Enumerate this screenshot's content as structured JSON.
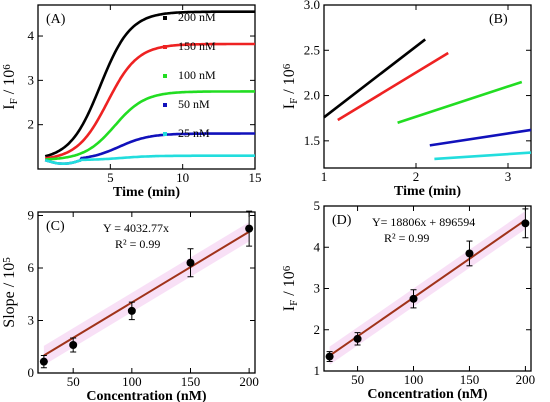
{
  "chart_data": [
    {
      "panel": "(A)",
      "type": "line",
      "xlabel": "Time (min)",
      "ylabel": "I_F / 10^6",
      "xlim": [
        0,
        15
      ],
      "ylim": [
        1.0,
        4.7
      ],
      "xticks": [
        5,
        10,
        15
      ],
      "yticks": [
        2,
        3,
        4
      ],
      "legend_position": "right",
      "series": [
        {
          "name": "200 nM",
          "color": "#000000",
          "start": 1.2,
          "plateau": 4.55,
          "halftime": 4.3
        },
        {
          "name": "150 nM",
          "color": "#ee2222",
          "start": 1.2,
          "plateau": 3.82,
          "halftime": 4.8
        },
        {
          "name": "100 nM",
          "color": "#22dd22",
          "start": 1.2,
          "plateau": 2.75,
          "halftime": 5.3
        },
        {
          "name": "50 nM",
          "color": "#1111bb",
          "start": 1.2,
          "plateau": 1.8,
          "halftime": 5.6
        },
        {
          "name": "25 nM",
          "color": "#22dddd",
          "start": 1.2,
          "plateau": 1.3,
          "halftime": 5.8
        }
      ]
    },
    {
      "panel": "(B)",
      "type": "line",
      "xlabel": "Time (min)",
      "ylabel": "I_F / 10^6",
      "xlim": [
        1.0,
        3.25
      ],
      "ylim": [
        1.2,
        3.0
      ],
      "xticks": [
        1,
        2,
        3
      ],
      "yticks": [
        1.5,
        2.0,
        2.5,
        3.0
      ],
      "series": [
        {
          "color": "#000000",
          "points": [
            [
              1.0,
              1.76
            ],
            [
              2.1,
              2.62
            ]
          ]
        },
        {
          "color": "#ee2222",
          "points": [
            [
              1.15,
              1.73
            ],
            [
              2.35,
              2.47
            ]
          ]
        },
        {
          "color": "#22dd22",
          "points": [
            [
              1.8,
              1.7
            ],
            [
              3.15,
              2.15
            ]
          ]
        },
        {
          "color": "#1111bb",
          "points": [
            [
              2.15,
              1.45
            ],
            [
              3.25,
              1.62
            ]
          ]
        },
        {
          "color": "#22dddd",
          "points": [
            [
              2.2,
              1.3
            ],
            [
              3.25,
              1.37
            ]
          ]
        }
      ]
    },
    {
      "panel": "(C)",
      "type": "scatter",
      "xlabel": "Concentration (nM)",
      "ylabel": "Slope / 10^5",
      "xlim": [
        20,
        205
      ],
      "ylim": [
        0,
        9.2
      ],
      "xticks": [
        50,
        100,
        150,
        200
      ],
      "yticks": [
        0,
        3,
        6,
        9
      ],
      "annotation_eq": "Y = 4032.77x",
      "annotation_r2": "R² = 0.99",
      "fit": [
        [
          25,
          1.0
        ],
        [
          200,
          8.07
        ]
      ],
      "points": [
        {
          "x": 25,
          "y": 0.65,
          "err": 0.35
        },
        {
          "x": 50,
          "y": 1.6,
          "err": 0.4
        },
        {
          "x": 100,
          "y": 3.55,
          "err": 0.5
        },
        {
          "x": 150,
          "y": 6.3,
          "err": 0.8
        },
        {
          "x": 200,
          "y": 8.25,
          "err": 1.0
        }
      ]
    },
    {
      "panel": "(D)",
      "type": "scatter",
      "xlabel": "Concentration (nM)",
      "ylabel": "I_F / 10^6",
      "xlim": [
        20,
        205
      ],
      "ylim": [
        1.0,
        5.0
      ],
      "xticks": [
        50,
        100,
        150,
        200
      ],
      "yticks": [
        1,
        2,
        3,
        4,
        5
      ],
      "annotation_eq": "Y= 18806x + 896594",
      "annotation_r2": "R² = 0.99",
      "fit": [
        [
          25,
          1.37
        ],
        [
          200,
          4.66
        ]
      ],
      "points": [
        {
          "x": 25,
          "y": 1.35,
          "err": 0.12
        },
        {
          "x": 50,
          "y": 1.78,
          "err": 0.15
        },
        {
          "x": 100,
          "y": 2.75,
          "err": 0.22
        },
        {
          "x": 150,
          "y": 3.85,
          "err": 0.3
        },
        {
          "x": 200,
          "y": 4.58,
          "err": 0.35
        }
      ]
    }
  ]
}
